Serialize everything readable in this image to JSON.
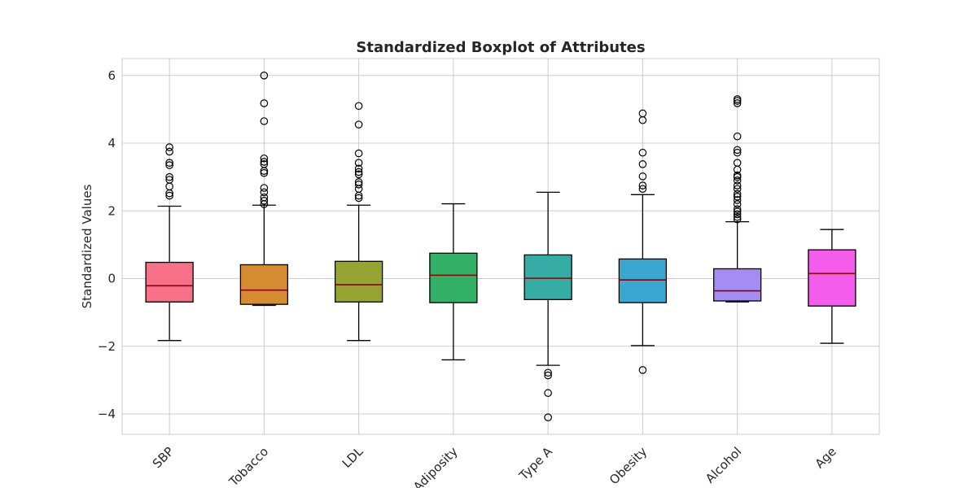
{
  "chart_data": {
    "type": "boxplot",
    "title": "Standardized Boxplot of Attributes",
    "xlabel": "",
    "ylabel": "Standardized Values",
    "ylim": [
      -4.6,
      6.5
    ],
    "yticks": [
      -4,
      -2,
      0,
      2,
      4,
      6
    ],
    "ytick_labels": [
      "−4",
      "−2",
      "0",
      "2",
      "4",
      "6"
    ],
    "grid": true,
    "categories": [
      "SBP",
      "Tobacco",
      "LDL",
      "Adiposity",
      "Type A",
      "Obesity",
      "Alcohol",
      "Age"
    ],
    "median_color": "#8b0000",
    "boxes": [
      {
        "label": "SBP",
        "color": "#f77189",
        "whisker_low": -1.83,
        "q1": -0.69,
        "median": -0.21,
        "q3": 0.48,
        "whisker_high": 2.14,
        "outliers": [
          2.45,
          2.52,
          2.72,
          2.92,
          3.0,
          3.35,
          3.42,
          3.75,
          3.88
        ]
      },
      {
        "label": "Tobacco",
        "color": "#d58c32",
        "whisker_low": -0.79,
        "q1": -0.76,
        "median": -0.34,
        "q3": 0.41,
        "whisker_high": 2.17,
        "outliers": [
          2.2,
          2.3,
          2.4,
          2.55,
          2.68,
          3.12,
          3.18,
          3.38,
          3.45,
          3.55,
          4.65,
          5.18,
          6.0
        ]
      },
      {
        "label": "LDL",
        "color": "#97a431",
        "whisker_low": -1.83,
        "q1": -0.69,
        "median": -0.18,
        "q3": 0.51,
        "whisker_high": 2.17,
        "outliers": [
          2.38,
          2.45,
          2.65,
          2.78,
          2.85,
          3.08,
          3.15,
          3.25,
          3.42,
          3.7,
          4.55,
          5.1
        ]
      },
      {
        "label": "Adiposity",
        "color": "#32b166",
        "whisker_low": -2.4,
        "q1": -0.71,
        "median": 0.1,
        "q3": 0.75,
        "whisker_high": 2.21,
        "outliers": []
      },
      {
        "label": "Type A",
        "color": "#36ada4",
        "whisker_low": -2.56,
        "q1": -0.62,
        "median": 0.01,
        "q3": 0.7,
        "whisker_high": 2.55,
        "outliers": [
          -2.78,
          -2.86,
          -3.38,
          -4.1
        ]
      },
      {
        "label": "Obesity",
        "color": "#39a7d0",
        "whisker_low": -1.98,
        "q1": -0.71,
        "median": -0.04,
        "q3": 0.58,
        "whisker_high": 2.48,
        "outliers": [
          2.65,
          2.75,
          3.02,
          3.38,
          3.72,
          4.68,
          4.88,
          -2.7
        ]
      },
      {
        "label": "Alcohol",
        "color": "#a48cf4",
        "whisker_low": -0.69,
        "q1": -0.66,
        "median": -0.36,
        "q3": 0.29,
        "whisker_high": 1.68,
        "outliers": [
          1.75,
          1.82,
          1.9,
          1.98,
          2.05,
          2.2,
          2.32,
          2.42,
          2.5,
          2.65,
          2.75,
          2.9,
          3.0,
          3.05,
          3.22,
          3.42,
          3.72,
          3.8,
          4.2,
          5.18,
          5.25,
          5.3
        ]
      },
      {
        "label": "Age",
        "color": "#f45deb",
        "whisker_low": -1.91,
        "q1": -0.81,
        "median": 0.15,
        "q3": 0.85,
        "whisker_high": 1.45,
        "outliers": []
      }
    ]
  }
}
